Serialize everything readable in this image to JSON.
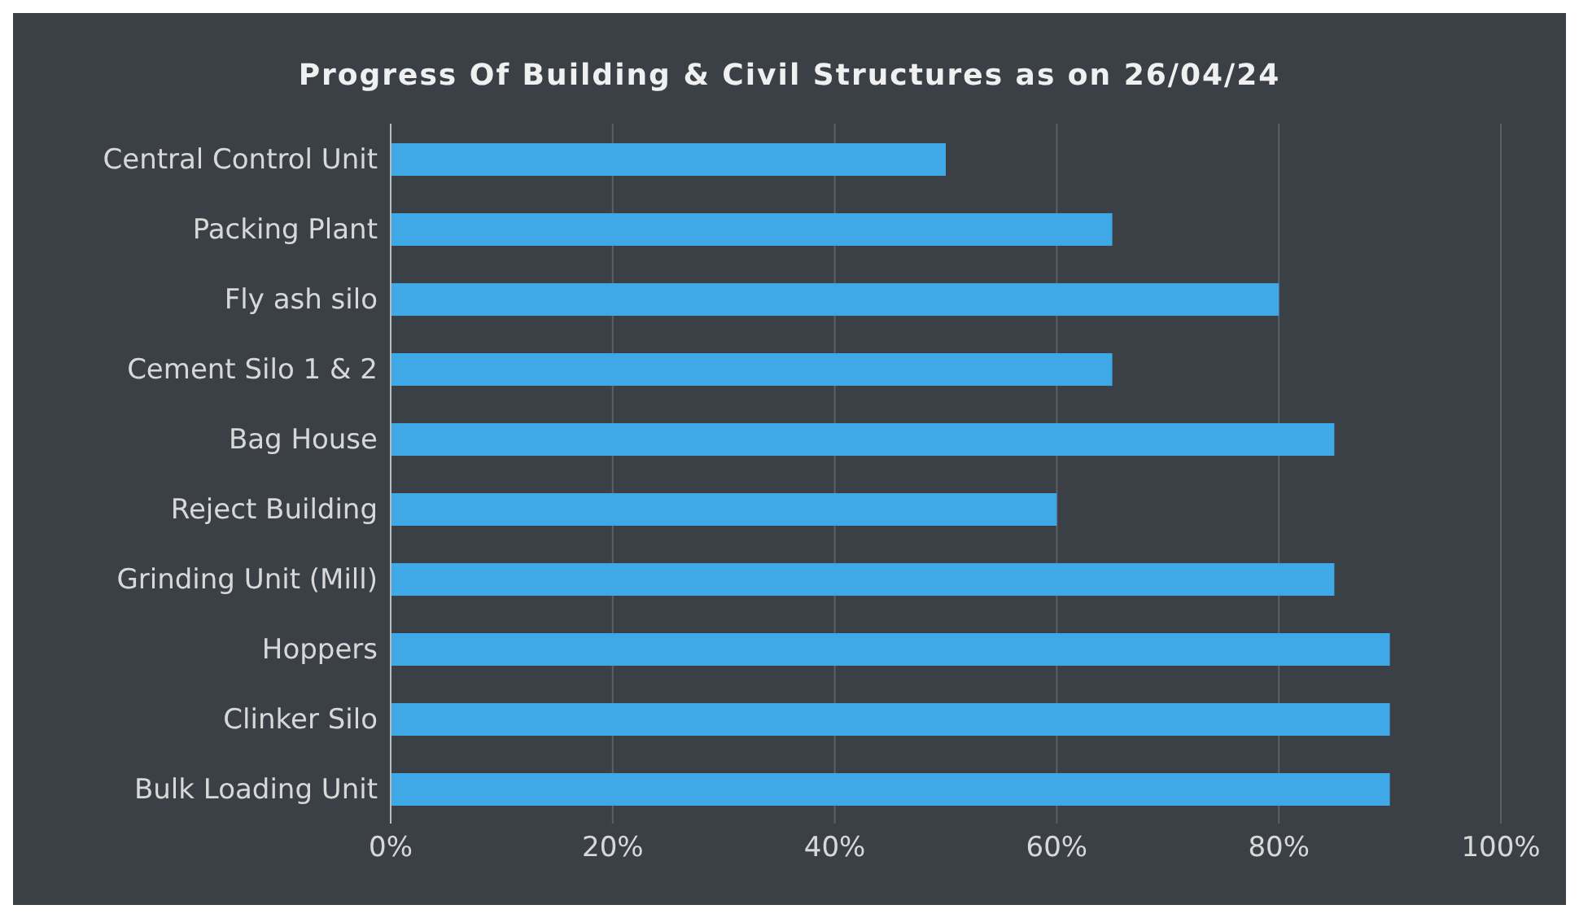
{
  "chart_data": {
    "type": "bar",
    "orientation": "horizontal",
    "title": "Progress Of Building & Civil Structures as on 26/04/24",
    "categories": [
      "Central Control Unit",
      "Packing Plant",
      "Fly ash silo",
      "Cement Silo 1 & 2",
      "Bag House",
      "Reject Building",
      "Grinding Unit (Mill)",
      "Hoppers",
      "Clinker Silo",
      "Bulk Loading Unit"
    ],
    "values": [
      50,
      65,
      80,
      65,
      85,
      60,
      85,
      90,
      90,
      90
    ],
    "color": "#3fa9e8",
    "xlim": [
      0,
      100
    ],
    "xticks": [
      {
        "value": 0,
        "label": "0%"
      },
      {
        "value": 20,
        "label": "20%"
      },
      {
        "value": 40,
        "label": "40%"
      },
      {
        "value": 60,
        "label": "60%"
      },
      {
        "value": 80,
        "label": "80%"
      },
      {
        "value": 100,
        "label": "100%"
      }
    ],
    "grid": "x"
  }
}
